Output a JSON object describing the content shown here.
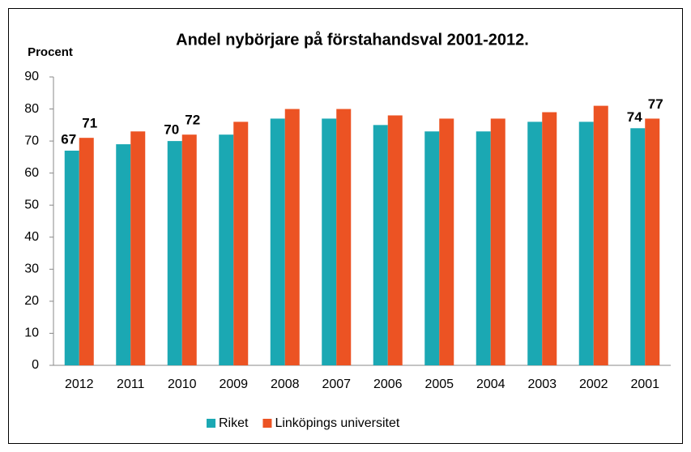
{
  "chart_data": {
    "type": "bar",
    "title": "Andel nybörjare på förstahandsval  2001-2012.",
    "y_label": "Procent",
    "categories": [
      "2012",
      "2011",
      "2010",
      "2009",
      "2008",
      "2007",
      "2006",
      "2005",
      "2004",
      "2003",
      "2002",
      "2001"
    ],
    "series": [
      {
        "name": "Riket",
        "color": "#1ba8b3",
        "values": [
          67,
          69,
          70,
          72,
          77,
          77,
          75,
          73,
          73,
          76,
          76,
          74
        ],
        "value_labels": [
          "67",
          null,
          "70",
          null,
          null,
          null,
          null,
          null,
          null,
          null,
          null,
          "74"
        ]
      },
      {
        "name": "Linköpings universitet",
        "color": "#ec5323",
        "values": [
          71,
          73,
          72,
          76,
          80,
          80,
          78,
          77,
          77,
          79,
          81,
          77
        ],
        "value_labels": [
          "71",
          null,
          "72",
          null,
          null,
          null,
          null,
          null,
          null,
          null,
          null,
          "77"
        ]
      }
    ],
    "ylim": [
      0,
      90
    ],
    "yticks": [
      0,
      10,
      20,
      30,
      40,
      50,
      60,
      70,
      80,
      90
    ],
    "grid": false,
    "legend": "bottom"
  }
}
